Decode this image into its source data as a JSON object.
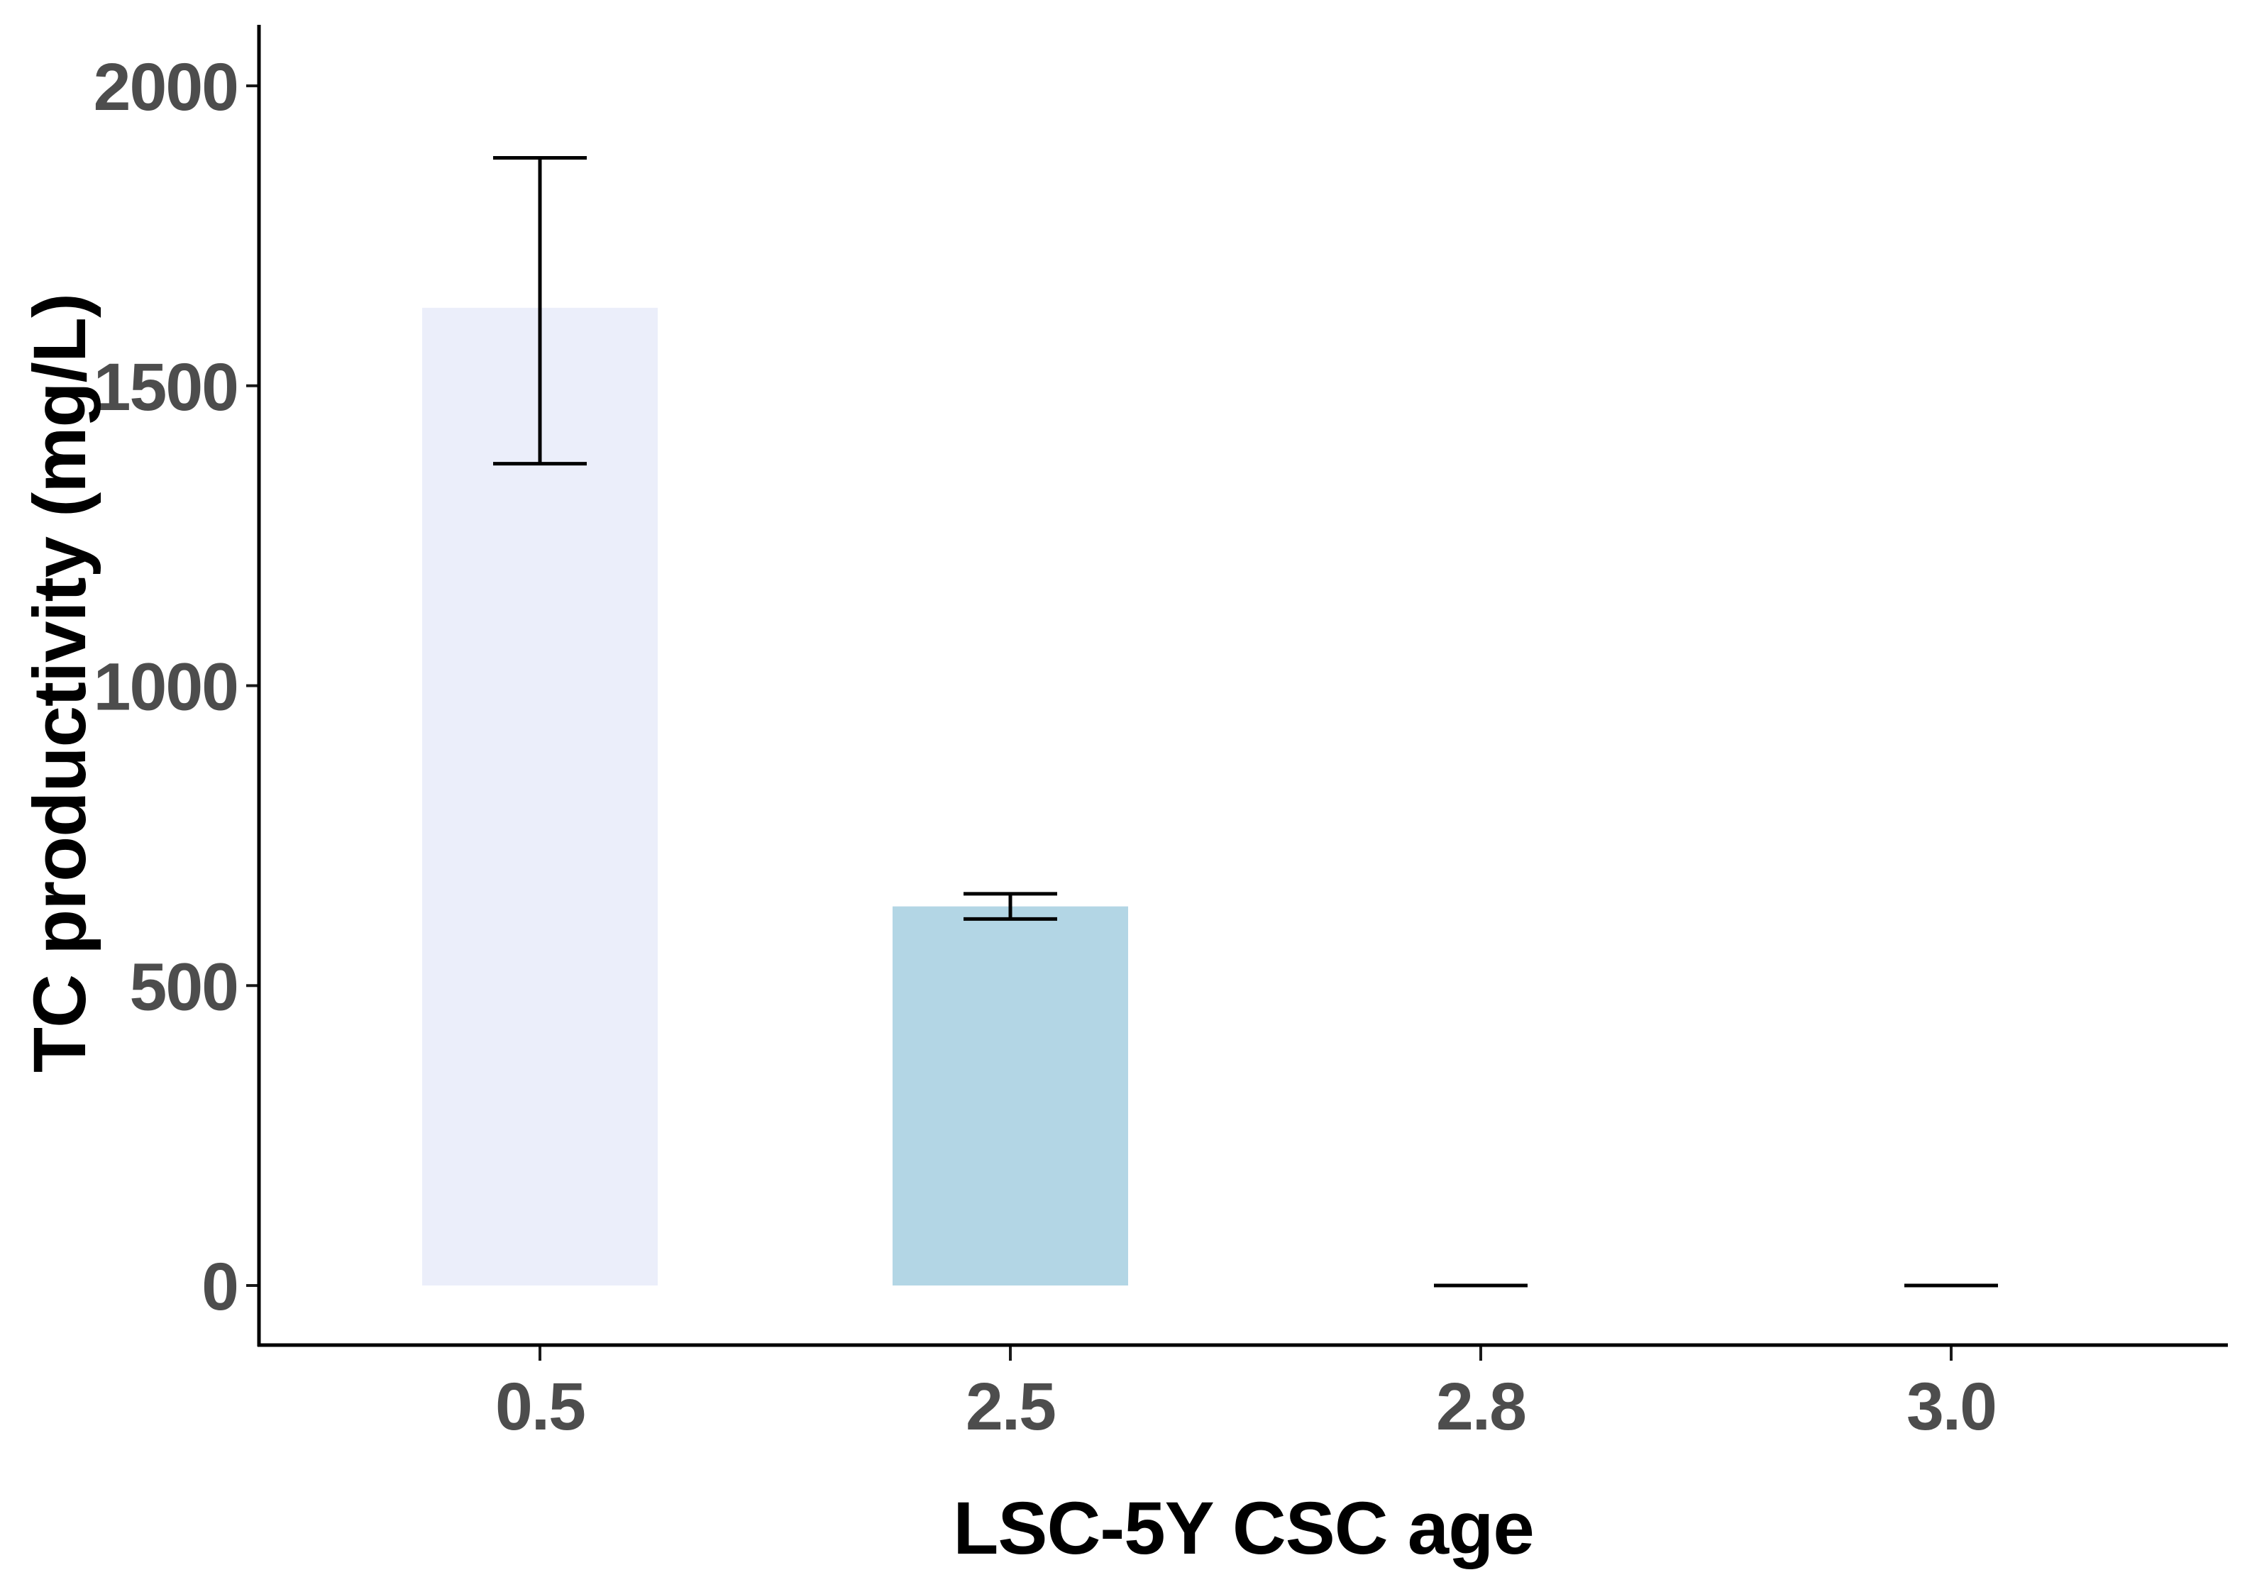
{
  "figure": {
    "background": "#ffffff"
  },
  "chart_data": {
    "type": "bar",
    "title": "",
    "xlabel": "LSC-5Y CSC age",
    "ylabel": "TC productivity (mg/L)",
    "categories": [
      "0.5",
      "2.5",
      "2.8",
      "3.0"
    ],
    "values": [
      1630,
      632,
      0,
      0
    ],
    "error_low": [
      1370,
      611,
      0,
      0
    ],
    "error_high": [
      1880,
      653,
      0,
      0
    ],
    "bar_colors": [
      "#EBEEFA",
      "#B3D6E5",
      null,
      null
    ],
    "y_ticks": [
      0,
      500,
      1000,
      1500,
      2000
    ],
    "ylim": [
      0,
      2100
    ],
    "grid": "off",
    "legend": "none",
    "colors": {
      "axis_line": "#000000",
      "tick_mark": "#1a1a1a",
      "tick_label": "#4d4d4d",
      "axis_title": "#000000",
      "error_bar": "#000000"
    }
  }
}
